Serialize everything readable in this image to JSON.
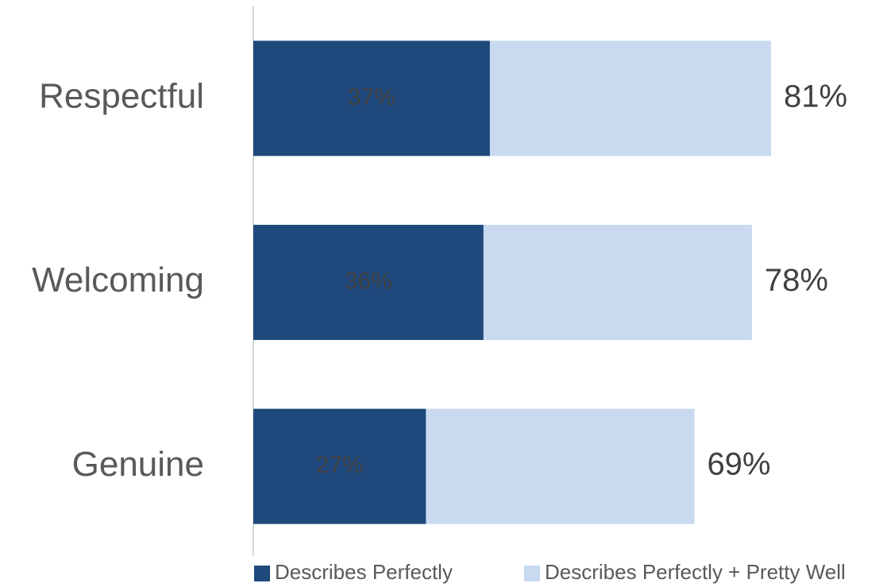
{
  "chart_data": {
    "type": "bar",
    "orientation": "horizontal",
    "overlap": true,
    "categories": [
      "Respectful",
      "Welcoming",
      "Genuine"
    ],
    "series": [
      {
        "name": "Describes Perfectly",
        "color": "#1f497d",
        "values": [
          37,
          36,
          27
        ],
        "value_labels": [
          "37%",
          "36%",
          "27%"
        ],
        "label_color": "#404040"
      },
      {
        "name": "Describes Perfectly + Pretty Well",
        "color": "#c9daf0",
        "values": [
          81,
          78,
          69
        ],
        "value_labels": [
          "81%",
          "78%",
          "69%"
        ],
        "label_color": "#404040"
      }
    ],
    "xlim": [
      0,
      100
    ],
    "grid": false,
    "legend": "bottom"
  }
}
